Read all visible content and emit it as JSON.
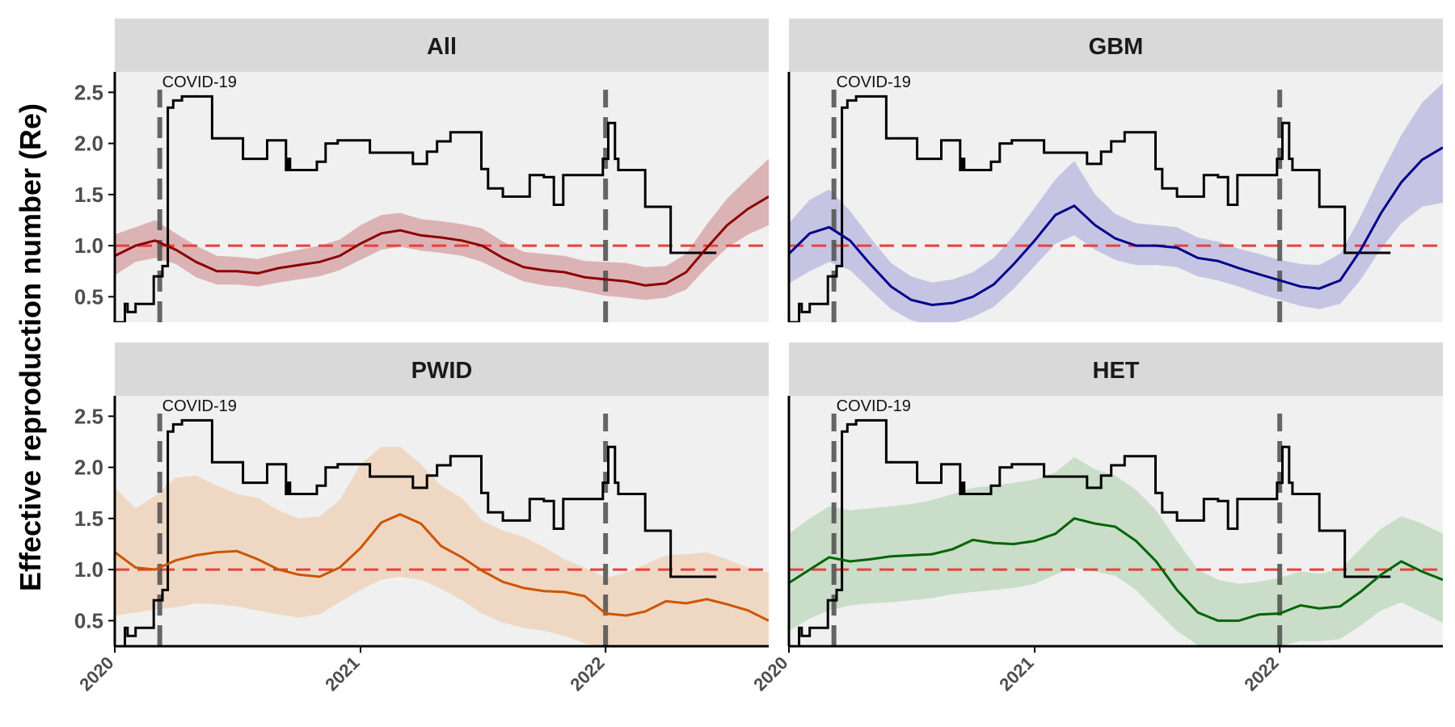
{
  "ylabel": "Effective reproduction number (Re)",
  "annotation": "COVID-19",
  "colors": {
    "panel_bg": "#f0f0f0",
    "strip_bg": "#d9d9d9",
    "reference_line": "#e8413e",
    "event_line": "#555555",
    "policy_line": "#000000"
  },
  "chart_data": {
    "type": "line",
    "facets": [
      "All",
      "GBM",
      "PWID",
      "HET"
    ],
    "x_ticks": [
      "2020",
      "2021",
      "2022"
    ],
    "xlim": [
      "2020-01-01",
      "2022-09-01"
    ],
    "y_ticks": [
      "0.5",
      "1.0",
      "1.5",
      "2.0",
      "2.5"
    ],
    "ylim": [
      0.25,
      2.7
    ],
    "reference_y": 1.0,
    "event_lines": [
      {
        "date": "2020-03-08",
        "label": "COVID-19"
      },
      {
        "date": "2022-01-01",
        "label": ""
      }
    ],
    "policy_step": [
      [
        "2020-01-01",
        0.25
      ],
      [
        "2020-01-16",
        0.43
      ],
      [
        "2020-01-20",
        0.35
      ],
      [
        "2020-02-01",
        0.43
      ],
      [
        "2020-02-28",
        0.7
      ],
      [
        "2020-03-12",
        0.8
      ],
      [
        "2020-03-20",
        2.35
      ],
      [
        "2020-03-28",
        2.42
      ],
      [
        "2020-04-10",
        2.46
      ],
      [
        "2020-05-25",
        2.05
      ],
      [
        "2020-07-10",
        1.85
      ],
      [
        "2020-08-15",
        2.03
      ],
      [
        "2020-09-12",
        1.74
      ],
      [
        "2020-09-15",
        1.85
      ],
      [
        "2020-09-18",
        1.74
      ],
      [
        "2020-10-28",
        1.82
      ],
      [
        "2020-11-10",
        2.0
      ],
      [
        "2020-11-28",
        2.03
      ],
      [
        "2021-01-15",
        1.91
      ],
      [
        "2021-03-20",
        1.8
      ],
      [
        "2021-04-10",
        1.92
      ],
      [
        "2021-04-25",
        2.02
      ],
      [
        "2021-05-15",
        2.11
      ],
      [
        "2021-06-30",
        1.75
      ],
      [
        "2021-07-10",
        1.56
      ],
      [
        "2021-08-01",
        1.48
      ],
      [
        "2021-09-10",
        1.69
      ],
      [
        "2021-10-01",
        1.67
      ],
      [
        "2021-10-16",
        1.4
      ],
      [
        "2021-10-30",
        1.69
      ],
      [
        "2021-12-28",
        1.85
      ],
      [
        "2022-01-05",
        2.2
      ],
      [
        "2022-01-15",
        1.85
      ],
      [
        "2022-01-20",
        1.74
      ],
      [
        "2022-03-01",
        1.38
      ],
      [
        "2022-04-08",
        0.93
      ],
      [
        "2022-06-15",
        0.93
      ]
    ],
    "series": [
      {
        "facet": "All",
        "color": "#8b0000",
        "band_color": "#d8a8aa",
        "x": [
          "2020-01-01",
          "2020-02-01",
          "2020-03-01",
          "2020-04-01",
          "2020-05-01",
          "2020-06-01",
          "2020-07-01",
          "2020-08-01",
          "2020-09-01",
          "2020-10-01",
          "2020-11-01",
          "2020-12-01",
          "2021-01-01",
          "2021-02-01",
          "2021-03-01",
          "2021-04-01",
          "2021-05-01",
          "2021-06-01",
          "2021-07-01",
          "2021-08-01",
          "2021-09-01",
          "2021-10-01",
          "2021-11-01",
          "2021-12-01",
          "2022-01-01",
          "2022-02-01",
          "2022-03-01",
          "2022-04-01",
          "2022-05-01",
          "2022-06-01",
          "2022-07-01",
          "2022-08-01",
          "2022-09-01"
        ],
        "mean": [
          0.9,
          1.0,
          1.05,
          0.96,
          0.84,
          0.75,
          0.75,
          0.73,
          0.78,
          0.81,
          0.84,
          0.9,
          1.02,
          1.12,
          1.15,
          1.1,
          1.08,
          1.05,
          1.0,
          0.88,
          0.79,
          0.76,
          0.74,
          0.69,
          0.67,
          0.65,
          0.61,
          0.63,
          0.74,
          0.98,
          1.2,
          1.36,
          1.48
        ],
        "lower": [
          0.71,
          0.84,
          0.88,
          0.82,
          0.69,
          0.62,
          0.62,
          0.6,
          0.64,
          0.67,
          0.7,
          0.76,
          0.86,
          0.96,
          0.99,
          0.95,
          0.93,
          0.9,
          0.84,
          0.74,
          0.65,
          0.61,
          0.59,
          0.55,
          0.51,
          0.49,
          0.47,
          0.49,
          0.57,
          0.79,
          0.98,
          1.11,
          1.2
        ],
        "upper": [
          1.11,
          1.18,
          1.25,
          1.12,
          1.0,
          0.9,
          0.89,
          0.87,
          0.92,
          0.96,
          1.0,
          1.06,
          1.2,
          1.3,
          1.32,
          1.26,
          1.24,
          1.21,
          1.17,
          1.04,
          0.94,
          0.92,
          0.9,
          0.85,
          0.84,
          0.83,
          0.79,
          0.8,
          0.92,
          1.21,
          1.46,
          1.66,
          1.85
        ]
      },
      {
        "facet": "GBM",
        "color": "#00008b",
        "band_color": "#bdbde0",
        "x": [
          "2020-01-01",
          "2020-02-01",
          "2020-03-01",
          "2020-04-01",
          "2020-05-01",
          "2020-06-01",
          "2020-07-01",
          "2020-08-01",
          "2020-09-01",
          "2020-10-01",
          "2020-11-01",
          "2020-12-01",
          "2021-01-01",
          "2021-02-01",
          "2021-03-01",
          "2021-04-01",
          "2021-05-01",
          "2021-06-01",
          "2021-07-01",
          "2021-08-01",
          "2021-09-01",
          "2021-10-01",
          "2021-11-01",
          "2021-12-01",
          "2022-01-01",
          "2022-02-01",
          "2022-03-01",
          "2022-04-01",
          "2022-05-01",
          "2022-06-01",
          "2022-07-01",
          "2022-08-01",
          "2022-09-01"
        ],
        "mean": [
          0.92,
          1.12,
          1.18,
          1.05,
          0.82,
          0.6,
          0.47,
          0.42,
          0.44,
          0.5,
          0.62,
          0.82,
          1.05,
          1.3,
          1.39,
          1.2,
          1.07,
          1.0,
          1.0,
          0.98,
          0.88,
          0.85,
          0.78,
          0.72,
          0.66,
          0.6,
          0.58,
          0.66,
          0.95,
          1.32,
          1.62,
          1.84,
          1.96
        ],
        "lower": [
          0.63,
          0.75,
          0.84,
          0.76,
          0.57,
          0.38,
          0.27,
          0.22,
          0.24,
          0.3,
          0.4,
          0.58,
          0.8,
          1.02,
          1.1,
          0.96,
          0.86,
          0.81,
          0.81,
          0.79,
          0.7,
          0.66,
          0.6,
          0.53,
          0.47,
          0.41,
          0.38,
          0.43,
          0.66,
          0.97,
          1.22,
          1.38,
          1.42
        ],
        "upper": [
          1.22,
          1.45,
          1.55,
          1.34,
          1.08,
          0.83,
          0.7,
          0.64,
          0.67,
          0.74,
          0.88,
          1.1,
          1.37,
          1.65,
          1.83,
          1.5,
          1.31,
          1.22,
          1.2,
          1.18,
          1.08,
          1.04,
          0.97,
          0.92,
          0.86,
          0.82,
          0.81,
          0.92,
          1.28,
          1.7,
          2.08,
          2.4,
          2.59
        ]
      },
      {
        "facet": "PWID",
        "color": "#cc5500",
        "band_color": "#efd3bb",
        "x": [
          "2020-01-01",
          "2020-02-01",
          "2020-03-01",
          "2020-04-01",
          "2020-05-01",
          "2020-06-01",
          "2020-07-01",
          "2020-08-01",
          "2020-09-01",
          "2020-10-01",
          "2020-11-01",
          "2020-12-01",
          "2021-01-01",
          "2021-02-01",
          "2021-03-01",
          "2021-04-01",
          "2021-05-01",
          "2021-06-01",
          "2021-07-01",
          "2021-08-01",
          "2021-09-01",
          "2021-10-01",
          "2021-11-01",
          "2021-12-01",
          "2022-01-01",
          "2022-02-01",
          "2022-03-01",
          "2022-04-01",
          "2022-05-01",
          "2022-06-01",
          "2022-07-01",
          "2022-08-01",
          "2022-09-01"
        ],
        "mean": [
          1.17,
          1.02,
          1.0,
          1.09,
          1.14,
          1.17,
          1.18,
          1.1,
          1.0,
          0.95,
          0.93,
          1.02,
          1.21,
          1.46,
          1.54,
          1.45,
          1.23,
          1.12,
          0.99,
          0.88,
          0.82,
          0.79,
          0.78,
          0.74,
          0.57,
          0.55,
          0.59,
          0.69,
          0.67,
          0.71,
          0.66,
          0.6,
          0.5
        ],
        "lower": [
          0.55,
          0.58,
          0.61,
          0.63,
          0.67,
          0.66,
          0.64,
          0.6,
          0.56,
          0.53,
          0.56,
          0.68,
          0.8,
          0.9,
          0.93,
          0.9,
          0.81,
          0.7,
          0.57,
          0.48,
          0.43,
          0.4,
          0.35,
          0.28,
          0.22,
          0.2,
          0.21,
          0.24,
          0.23,
          0.23,
          0.2,
          0.19,
          0.2
        ],
        "upper": [
          1.8,
          1.6,
          1.72,
          1.9,
          1.92,
          1.82,
          1.74,
          1.7,
          1.58,
          1.5,
          1.52,
          1.68,
          2.03,
          2.2,
          2.2,
          2.03,
          1.82,
          1.7,
          1.48,
          1.38,
          1.32,
          1.22,
          1.1,
          1.02,
          0.92,
          0.97,
          1.05,
          1.14,
          1.15,
          1.17,
          1.1,
          1.02,
          0.97
        ]
      },
      {
        "facet": "HET",
        "color": "#006400",
        "band_color": "#c2d9c2",
        "x": [
          "2020-01-01",
          "2020-02-01",
          "2020-03-01",
          "2020-04-01",
          "2020-05-01",
          "2020-06-01",
          "2020-07-01",
          "2020-08-01",
          "2020-09-01",
          "2020-10-01",
          "2020-11-01",
          "2020-12-01",
          "2021-01-01",
          "2021-02-01",
          "2021-03-01",
          "2021-04-01",
          "2021-05-01",
          "2021-06-01",
          "2021-07-01",
          "2021-08-01",
          "2021-09-01",
          "2021-10-01",
          "2021-11-01",
          "2021-12-01",
          "2022-01-01",
          "2022-02-01",
          "2022-03-01",
          "2022-04-01",
          "2022-05-01",
          "2022-06-01",
          "2022-07-01",
          "2022-08-01",
          "2022-09-01"
        ],
        "mean": [
          0.87,
          1.0,
          1.12,
          1.08,
          1.1,
          1.13,
          1.14,
          1.15,
          1.2,
          1.29,
          1.26,
          1.25,
          1.28,
          1.35,
          1.5,
          1.45,
          1.42,
          1.28,
          1.08,
          0.8,
          0.58,
          0.5,
          0.5,
          0.56,
          0.57,
          0.65,
          0.62,
          0.64,
          0.78,
          0.95,
          1.08,
          0.98,
          0.9
        ],
        "lower": [
          0.4,
          0.52,
          0.6,
          0.65,
          0.67,
          0.68,
          0.7,
          0.72,
          0.76,
          0.78,
          0.8,
          0.82,
          0.86,
          0.95,
          1.02,
          0.98,
          0.94,
          0.8,
          0.6,
          0.4,
          0.26,
          0.22,
          0.22,
          0.24,
          0.25,
          0.3,
          0.3,
          0.32,
          0.45,
          0.6,
          0.68,
          0.58,
          0.48
        ],
        "upper": [
          1.35,
          1.5,
          1.62,
          1.58,
          1.6,
          1.62,
          1.64,
          1.68,
          1.74,
          1.8,
          1.82,
          1.85,
          1.88,
          1.95,
          2.1,
          1.98,
          1.92,
          1.78,
          1.58,
          1.28,
          1.0,
          0.9,
          0.86,
          0.88,
          0.92,
          0.98,
          0.96,
          1.0,
          1.2,
          1.4,
          1.52,
          1.45,
          1.35
        ]
      }
    ]
  }
}
